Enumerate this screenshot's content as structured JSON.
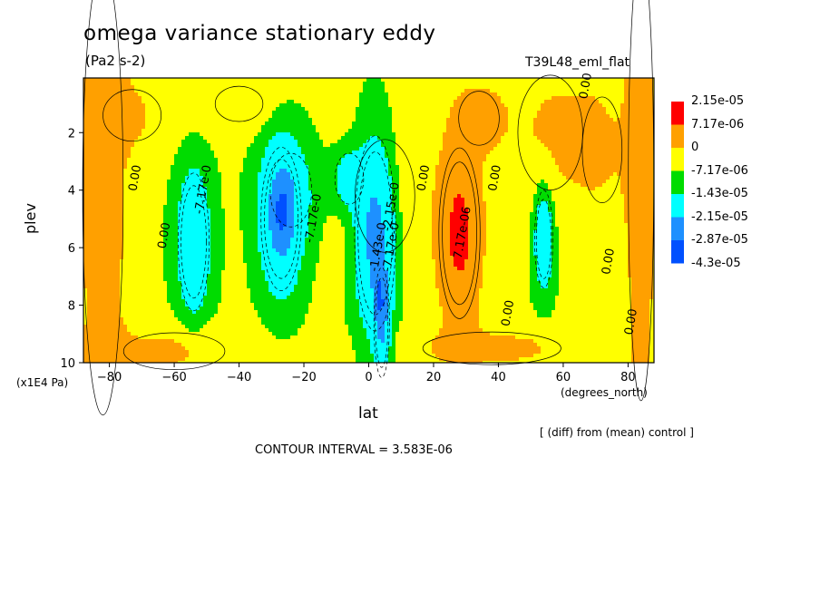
{
  "chart_data": {
    "type": "heatmap",
    "title": "omega variance stationary eddy",
    "units": "(Pa2 s-2)",
    "experiment": "T39L48_eml_flat",
    "xlabel": "lat",
    "xunits": "(degrees_north)",
    "ylabel": "plev",
    "yunits": "(x1E4 Pa)",
    "x_ticks": [
      -80,
      -60,
      -40,
      -20,
      0,
      20,
      40,
      60,
      80
    ],
    "x_tick_labels": [
      "−80",
      "−60",
      "−40",
      "−20",
      "0",
      "20",
      "40",
      "60",
      "80"
    ],
    "y_ticks": [
      2,
      4,
      6,
      8,
      10
    ],
    "y_tick_labels": [
      "2",
      "4",
      "6",
      "8",
      "10"
    ],
    "xlim": [
      -88,
      88
    ],
    "ylim": [
      10,
      0.1
    ],
    "note": "[ (diff) from (mean) control ]",
    "contour_interval": "CONTOUR INTERVAL = 3.583E-06",
    "legend": {
      "levels": [
        "2.15e-05",
        "7.17e-06",
        "0",
        "-7.17e-06",
        "-1.43e-05",
        "-2.15e-05",
        "-2.87e-05",
        "-4.3e-05"
      ],
      "colors": [
        "#ff0000",
        "#ffa000",
        "#ffff00",
        "#00dc00",
        "#00ffff",
        "#1e90ff",
        "#0050ff"
      ]
    },
    "contour_labels": [
      {
        "lat": 68,
        "plev": 0.4,
        "text": "0.00"
      },
      {
        "lat": -71,
        "plev": 3.6,
        "text": "0.00"
      },
      {
        "lat": -62,
        "plev": 5.6,
        "text": "0.00"
      },
      {
        "lat": -50,
        "plev": 4.0,
        "text": "-7.17e-0"
      },
      {
        "lat": -16,
        "plev": 5.0,
        "text": "-7.17e-0"
      },
      {
        "lat": 18,
        "plev": 3.6,
        "text": "0.00"
      },
      {
        "lat": 30,
        "plev": 5.5,
        "text": "7.17e-06"
      },
      {
        "lat": 40,
        "plev": 3.6,
        "text": "0.00"
      },
      {
        "lat": 4,
        "plev": 6.0,
        "text": "-1.43e-0"
      },
      {
        "lat": 8,
        "plev": 4.6,
        "text": "-2.15e-0"
      },
      {
        "lat": 8,
        "plev": 6.0,
        "text": "-7.17e-0"
      },
      {
        "lat": 44,
        "plev": 8.3,
        "text": "0.00"
      },
      {
        "lat": 75,
        "plev": 6.5,
        "text": "0.00"
      },
      {
        "lat": 82,
        "plev": 8.6,
        "text": "0.00"
      }
    ],
    "blobs": [
      {
        "lat": 28,
        "plev": 5.5,
        "dlat": 6,
        "dplev": 2.8,
        "level": 2.4
      },
      {
        "lat": 5,
        "plev": 4.2,
        "dlat": 15,
        "dplev": 3.2,
        "level": 0.4
      },
      {
        "lat": 34,
        "plev": 1.5,
        "dlat": 8,
        "dplev": 1.2,
        "level": 0.8
      },
      {
        "lat": 38,
        "plev": 9.5,
        "dlat": 30,
        "dplev": 0.8,
        "level": 0.6
      },
      {
        "lat": 56,
        "plev": 2.0,
        "dlat": 15,
        "dplev": 3.0,
        "level": 0.5
      },
      {
        "lat": 72,
        "plev": 2.6,
        "dlat": 10,
        "dplev": 3.0,
        "level": 0.4
      },
      {
        "lat": 84,
        "plev": 3.5,
        "dlat": 5,
        "dplev": 10,
        "level": 0.8
      },
      {
        "lat": -82,
        "plev": 4.0,
        "dlat": 8,
        "dplev": 10,
        "level": 0.8
      },
      {
        "lat": -73,
        "plev": 1.4,
        "dlat": 14,
        "dplev": 1.4,
        "level": 0.45
      },
      {
        "lat": -60,
        "plev": 9.6,
        "dlat": 22,
        "dplev": 0.9,
        "level": 0.6
      },
      {
        "lat": -40,
        "plev": 1.0,
        "dlat": 12,
        "dplev": 1.0,
        "level": 0.4
      },
      {
        "lat": -54,
        "plev": 5.8,
        "dlat": 5,
        "dplev": 2.5,
        "level": -1.6
      },
      {
        "lat": -27,
        "plev": 5.0,
        "dlat": 6,
        "dplev": 2.4,
        "level": -2.2
      },
      {
        "lat": -24,
        "plev": 4.0,
        "dlat": 9,
        "dplev": 1.8,
        "level": -0.6
      },
      {
        "lat": 2,
        "plev": 5.5,
        "dlat": 6,
        "dplev": 3.2,
        "level": -2.4
      },
      {
        "lat": -6,
        "plev": 3.6,
        "dlat": 5,
        "dplev": 1.0,
        "level": -1.2
      },
      {
        "lat": 4,
        "plev": 8.6,
        "dlat": 2.5,
        "dplev": 2.0,
        "level": -1.6
      },
      {
        "lat": 54,
        "plev": 5.7,
        "dlat": 3,
        "dplev": 1.8,
        "level": -1.5
      }
    ]
  }
}
